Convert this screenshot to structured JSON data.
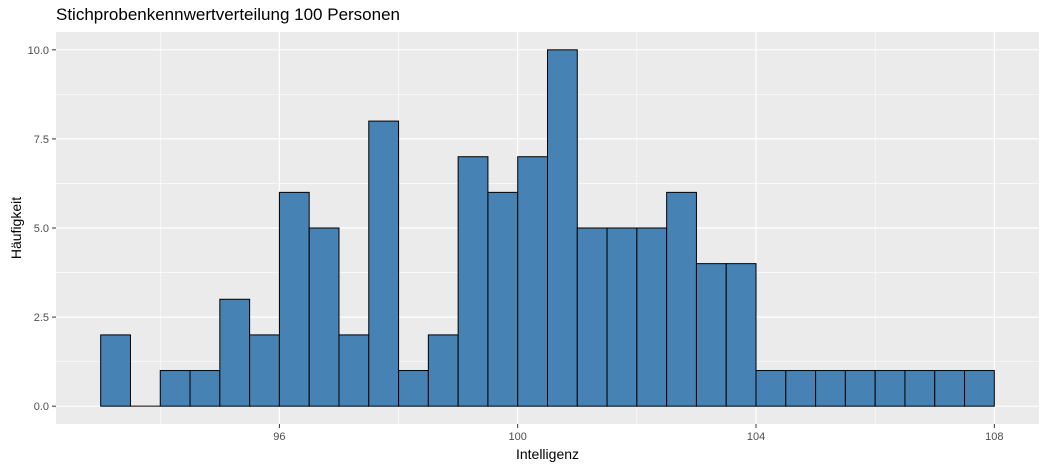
{
  "chart_data": {
    "type": "bar",
    "title": "Stichprobenkennwertverteilung 100 Personen",
    "xlabel": "Intelligenz",
    "ylabel": "Häufigkeit",
    "bin_start": 93.0,
    "bin_width": 0.5,
    "values": [
      2,
      0,
      1,
      1,
      3,
      2,
      6,
      5,
      2,
      8,
      1,
      2,
      7,
      6,
      7,
      10,
      5,
      5,
      5,
      6,
      4,
      4,
      1,
      1,
      1,
      1,
      1,
      1,
      1,
      1
    ],
    "xlim": [
      92.25,
      108.75
    ],
    "ylim": [
      -0.5,
      10.5
    ],
    "x_ticks": [
      96,
      100,
      104,
      108
    ],
    "x_tick_labels": [
      "96",
      "100",
      "104",
      "108"
    ],
    "y_ticks": [
      0,
      2.5,
      5,
      7.5,
      10
    ],
    "y_tick_labels": [
      "0.0",
      "2.5",
      "5.0",
      "7.5",
      "10.0"
    ],
    "grid": true,
    "colors": {
      "fill": "#4682B4",
      "stroke": "#000000",
      "panel": "#EBEBEB",
      "grid": "#FFFFFF"
    }
  }
}
